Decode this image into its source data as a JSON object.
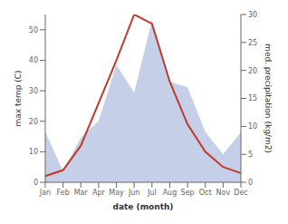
{
  "chart_data": {
    "type": "line",
    "categories": [
      "Jan",
      "Feb",
      "Mar",
      "Apr",
      "May",
      "Jun",
      "Jul",
      "Aug",
      "Sep",
      "Oct",
      "Nov",
      "Dec"
    ],
    "series": [
      {
        "type": "area",
        "axis": "y2",
        "color": "#c5cfe8",
        "values": [
          9,
          2,
          8,
          11,
          21,
          16,
          29,
          18,
          17,
          9,
          5,
          9
        ]
      },
      {
        "type": "line",
        "color": "#c0392b",
        "values": [
          2,
          4,
          12,
          26,
          40,
          55,
          52,
          33,
          19,
          10,
          5,
          3
        ]
      }
    ],
    "xlabel": "date (month)",
    "ylabel": "max temp (C)",
    "y2label": "med. precipitation (kg/m2)",
    "ylim": [
      0,
      55
    ],
    "yticks": [
      0,
      10,
      20,
      30,
      40,
      50
    ],
    "y2lim": [
      0,
      30
    ],
    "y2ticks": [
      0,
      5,
      10,
      15,
      20,
      25,
      30
    ],
    "grid": false
  }
}
